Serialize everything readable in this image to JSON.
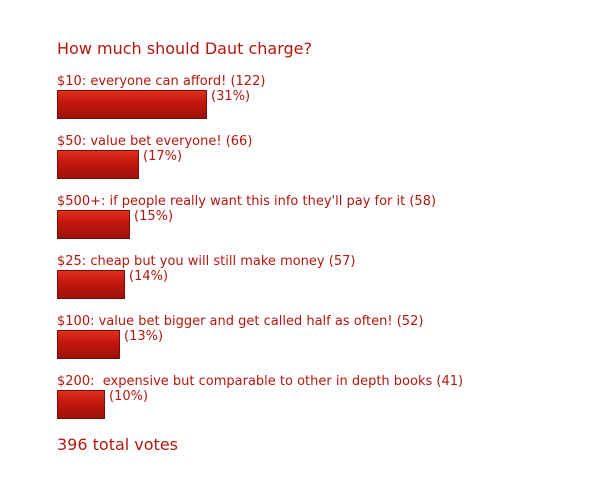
{
  "poll": {
    "title": "How much should Daut charge?",
    "options": [
      {
        "label": "$10: everyone can afford! (122)",
        "percent_label": "(31%)",
        "votes": 122,
        "percent": 31
      },
      {
        "label": "$50: value bet everyone! (66)",
        "percent_label": "(17%)",
        "votes": 66,
        "percent": 17
      },
      {
        "label": "$500+: if people really want this info they'll pay for it (58)",
        "percent_label": "(15%)",
        "votes": 58,
        "percent": 15
      },
      {
        "label": "$25: cheap but you will still make money (57)",
        "percent_label": "(14%)",
        "votes": 57,
        "percent": 14
      },
      {
        "label": "$100: value bet bigger and get called half as often! (52)",
        "percent_label": "(13%)",
        "votes": 52,
        "percent": 13
      },
      {
        "label": "$200:  expensive but comparable to other in depth books (41)",
        "percent_label": "(10%)",
        "votes": 41,
        "percent": 10
      }
    ],
    "total": "396 total votes"
  },
  "colors": {
    "text": "#b3170f",
    "bar": "#c4170e",
    "bar_border": "#7a0d08"
  }
}
